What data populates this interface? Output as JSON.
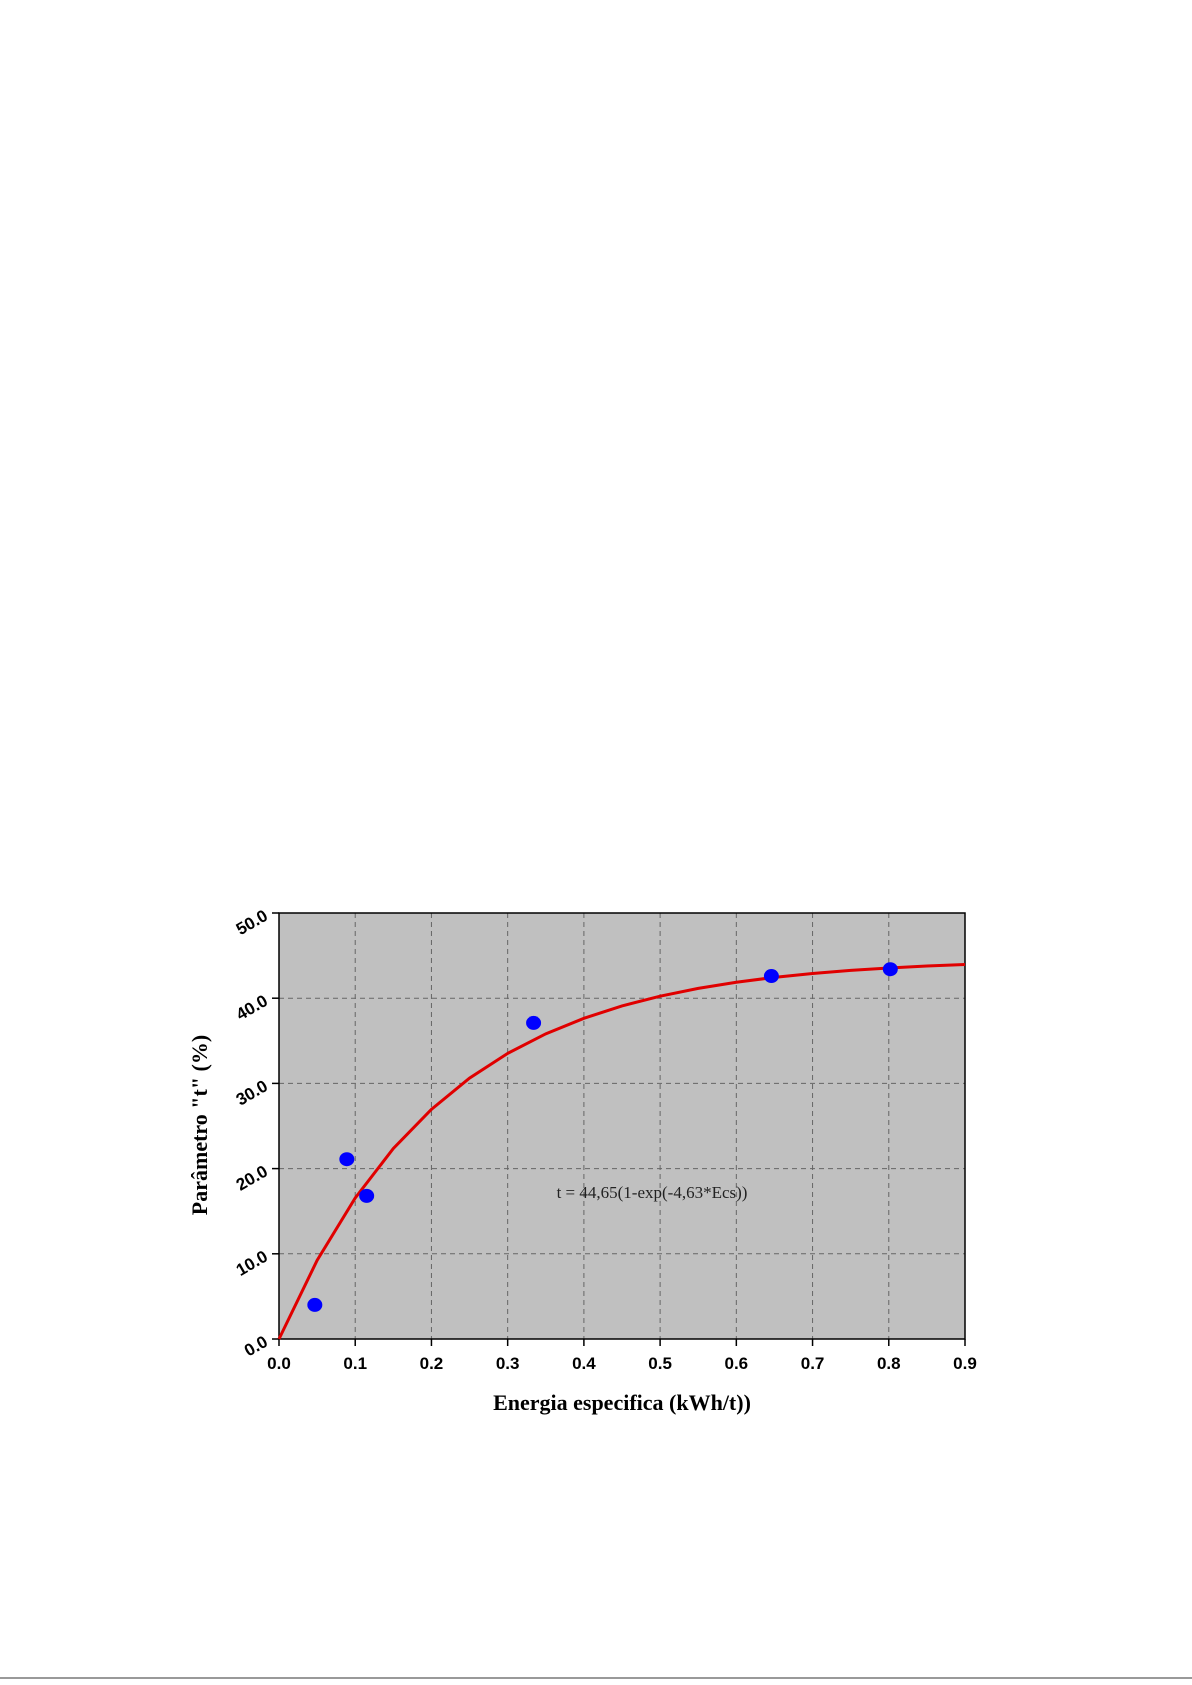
{
  "chart_data": {
    "type": "scatter",
    "xlabel": "Energia especifica (kWh/t))",
    "ylabel": "Parâmetro \"t\"  (%)",
    "annotation": "t = 44,65(1-exp(-4,63*Ecs))",
    "xlim": [
      0,
      0.9
    ],
    "ylim": [
      0,
      50
    ],
    "xticks": [
      {
        "value": 0,
        "label": "0.0"
      },
      0.1,
      0.2,
      0.3,
      0.4,
      0.5,
      0.6,
      0.7,
      0.8,
      0.9
    ],
    "yticks": [
      {
        "value": 0,
        "label": "0.0"
      },
      {
        "value": 10,
        "label": "10.0"
      },
      {
        "value": 20,
        "label": "20.0"
      },
      {
        "value": 30,
        "label": "30.0"
      },
      {
        "value": 40,
        "label": "40.0"
      },
      {
        "value": 50,
        "label": "50.0"
      }
    ],
    "grid": true,
    "background": "#c0c0c0",
    "points": {
      "color": "#0000ff",
      "x": [
        0.047,
        0.089,
        0.115,
        0.334,
        0.646,
        0.802
      ],
      "values": [
        4.0,
        21.1,
        16.8,
        37.1,
        42.6,
        43.4
      ]
    },
    "fit": {
      "color": "#e00000",
      "x": [
        0,
        0.05,
        0.1,
        0.15,
        0.2,
        0.25,
        0.3,
        0.35,
        0.4,
        0.45,
        0.5,
        0.55,
        0.6,
        0.65,
        0.7,
        0.75,
        0.8,
        0.85,
        0.9
      ],
      "values": [
        0,
        9.23,
        16.55,
        22.36,
        26.96,
        30.62,
        33.52,
        35.82,
        37.64,
        39.09,
        40.24,
        41.15,
        41.87,
        42.45,
        42.9,
        43.27,
        43.55,
        43.78,
        43.96
      ]
    }
  }
}
